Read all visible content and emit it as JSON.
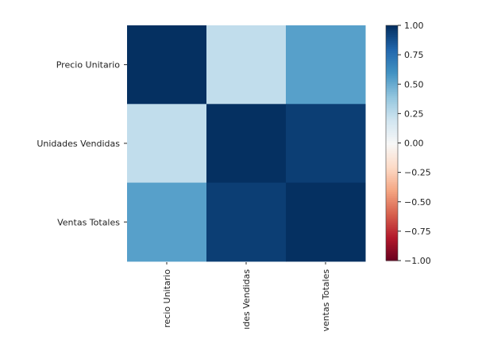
{
  "chart_data": {
    "type": "heatmap",
    "row_labels": [
      "Precio Unitario",
      "Unidades Vendidas",
      "Ventas Totales"
    ],
    "col_labels": [
      "Precio Unitario",
      "Unidades Vendidas",
      "Ventas Totales"
    ],
    "col_labels_visible": [
      "recio Unitario",
      "ıdes Vendidas",
      "ventas Totales"
    ],
    "values": [
      [
        1.0,
        0.25,
        0.55
      ],
      [
        0.25,
        1.0,
        0.95
      ],
      [
        0.55,
        0.95,
        1.0
      ]
    ],
    "colorscale": "RdBu",
    "vmin": -1.0,
    "vmax": 1.0,
    "colorbar_ticks": [
      1.0,
      0.75,
      0.5,
      0.25,
      0.0,
      -0.25,
      -0.5,
      -0.75,
      -1.0
    ],
    "colorbar_tick_labels": [
      "1.00",
      "0.75",
      "0.50",
      "0.25",
      "0.00",
      "−0.25",
      "−0.50",
      "−0.75",
      "−1.00"
    ]
  }
}
